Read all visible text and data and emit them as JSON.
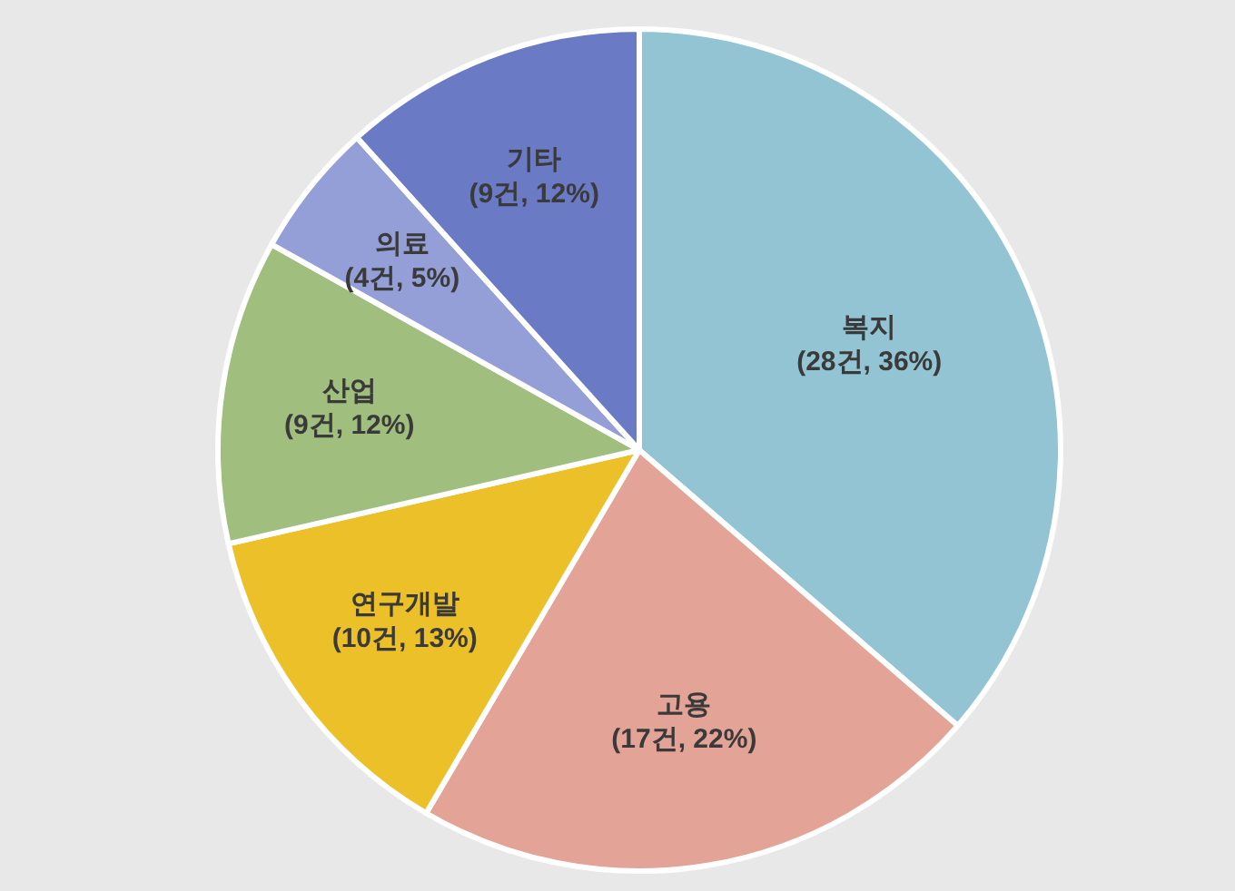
{
  "chart_data": {
    "type": "pie",
    "categories": [
      "복지",
      "고용",
      "연구개발",
      "산업",
      "의료",
      "기타"
    ],
    "values": [
      28,
      17,
      10,
      9,
      4,
      9
    ],
    "colors": [
      "#93c4d3",
      "#e3a396",
      "#ecc029",
      "#a0bf7e",
      "#949fd8",
      "#6b7ac4"
    ],
    "value_labels": [
      "(28건, 36%)",
      "(17건, 22%)",
      "(10건, 13%)",
      "(9건, 12%)",
      "(4건, 5%)",
      "(9건, 12%)"
    ]
  }
}
